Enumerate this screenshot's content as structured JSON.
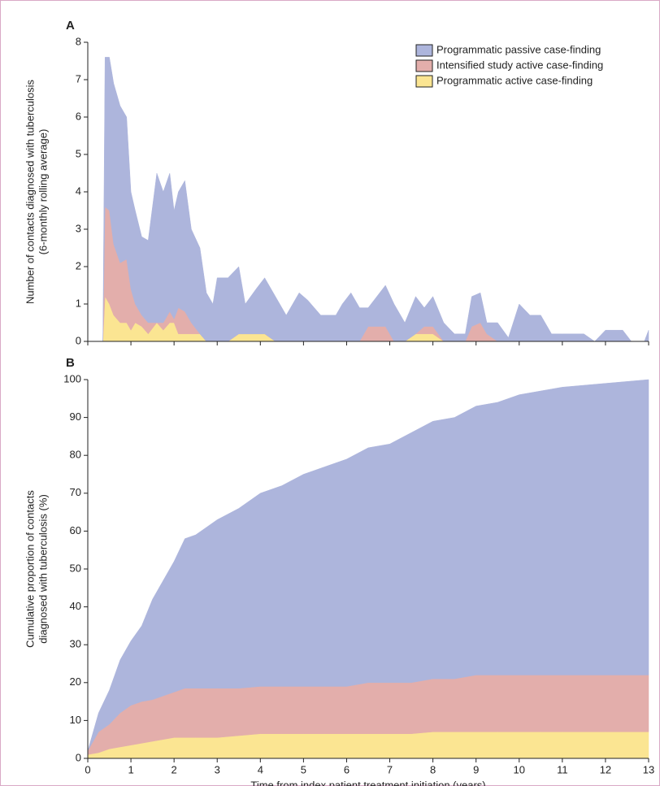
{
  "chart_data": [
    {
      "type": "area",
      "stacked": true,
      "panel_label": "A",
      "ylabel": [
        "Number of contacts diagnosed with tuberculosis",
        "(6-monthly rolling average)"
      ],
      "xlim": [
        0,
        13
      ],
      "ylim": [
        0,
        8
      ],
      "xticks": [
        0,
        1,
        2,
        3,
        4,
        5,
        6,
        7,
        8,
        9,
        10,
        11,
        12,
        13
      ],
      "yticks": [
        0,
        1,
        2,
        3,
        4,
        5,
        6,
        7,
        8
      ],
      "show_xtick_labels": false,
      "legend": "upper right",
      "x": [
        0,
        0.35,
        0.4,
        0.5,
        0.6,
        0.75,
        0.9,
        1,
        1.1,
        1.25,
        1.4,
        1.6,
        1.75,
        1.9,
        2,
        2.1,
        2.25,
        2.4,
        2.6,
        2.75,
        2.9,
        3,
        3.25,
        3.5,
        3.65,
        3.9,
        4.1,
        4.35,
        4.6,
        4.9,
        5.1,
        5.4,
        5.75,
        5.9,
        6.1,
        6.3,
        6.5,
        6.9,
        7.1,
        7.35,
        7.6,
        7.8,
        8,
        8.25,
        8.5,
        8.75,
        8.9,
        9.1,
        9.25,
        9.5,
        9.75,
        10,
        10.25,
        10.5,
        10.75,
        11,
        11.5,
        11.75,
        12,
        12.4,
        12.6,
        12.9,
        13
      ],
      "series": [
        {
          "name": "Programmatic active case-finding",
          "color": "#fbe592",
          "values": [
            0,
            0,
            1.2,
            1.0,
            0.7,
            0.5,
            0.5,
            0.3,
            0.5,
            0.4,
            0.2,
            0.5,
            0.3,
            0.5,
            0.5,
            0.2,
            0.2,
            0.2,
            0.2,
            0,
            0,
            0,
            0,
            0.2,
            0.2,
            0.2,
            0.2,
            0,
            0,
            0,
            0,
            0,
            0,
            0,
            0,
            0,
            0,
            0,
            0,
            0,
            0.2,
            0.2,
            0.2,
            0,
            0,
            0,
            0,
            0,
            0,
            0,
            0,
            0,
            0,
            0,
            0,
            0,
            0,
            0,
            0,
            0,
            0,
            0,
            0
          ]
        },
        {
          "name": "Intensified study active case-finding",
          "color": "#e3aeab",
          "values": [
            0,
            0,
            2.4,
            2.5,
            1.9,
            1.6,
            1.7,
            1.1,
            0.5,
            0.3,
            0.3,
            0,
            0.2,
            0.3,
            0.1,
            0.7,
            0.6,
            0.3,
            0,
            0,
            0,
            0,
            0,
            0,
            0,
            0,
            0,
            0,
            0,
            0,
            0,
            0,
            0,
            0,
            0,
            0,
            0.4,
            0.4,
            0,
            0,
            0,
            0.2,
            0.2,
            0,
            0,
            0,
            0.4,
            0.5,
            0.2,
            0,
            0,
            0,
            0,
            0,
            0,
            0,
            0,
            0,
            0,
            0,
            0,
            0,
            0
          ]
        },
        {
          "name": "Programmatic passive case-finding",
          "color": "#adb5dc",
          "values": [
            0,
            0,
            4.0,
            4.1,
            4.3,
            4.2,
            3.8,
            2.6,
            2.5,
            2.1,
            2.2,
            4.0,
            3.5,
            3.7,
            2.9,
            3.1,
            3.5,
            2.5,
            2.3,
            1.3,
            1.0,
            1.7,
            1.7,
            1.8,
            0.8,
            1.2,
            1.5,
            1.2,
            0.7,
            1.3,
            1.1,
            0.7,
            0.7,
            1.0,
            1.3,
            0.9,
            0.5,
            1.1,
            1.0,
            0.5,
            1.0,
            0.5,
            0.8,
            0.5,
            0.2,
            0.2,
            0.8,
            0.8,
            0.3,
            0.5,
            0.1,
            1.0,
            0.7,
            0.7,
            0.2,
            0.2,
            0.2,
            0,
            0.3,
            0.3,
            0,
            0,
            0.3
          ]
        }
      ]
    },
    {
      "type": "area",
      "stacked": true,
      "panel_label": "B",
      "ylabel": [
        "Cumulative proportion of contacts",
        "diagnosed with tuberculosis (%)"
      ],
      "xlabel": "Time from index patient treatment initiation (years)",
      "xlim": [
        0,
        13
      ],
      "ylim": [
        0,
        100
      ],
      "xticks": [
        0,
        1,
        2,
        3,
        4,
        5,
        6,
        7,
        8,
        9,
        10,
        11,
        12,
        13
      ],
      "yticks": [
        0,
        10,
        20,
        30,
        40,
        50,
        60,
        70,
        80,
        90,
        100
      ],
      "show_xtick_labels": true,
      "x": [
        0,
        0.25,
        0.5,
        0.75,
        1,
        1.25,
        1.5,
        1.75,
        2,
        2.25,
        2.5,
        2.75,
        3,
        3.5,
        4,
        4.5,
        5,
        5.5,
        6,
        6.5,
        7,
        7.5,
        8,
        8.5,
        9,
        9.5,
        10,
        10.5,
        11,
        12,
        13
      ],
      "series": [
        {
          "name": "Programmatic active case-finding",
          "color": "#fbe592",
          "values": [
            1,
            1.5,
            2.5,
            3,
            3.5,
            4,
            4.5,
            5,
            5.5,
            5.5,
            5.5,
            5.5,
            5.5,
            6,
            6.5,
            6.5,
            6.5,
            6.5,
            6.5,
            6.5,
            6.5,
            6.5,
            7,
            7,
            7,
            7,
            7,
            7,
            7,
            7,
            7
          ]
        },
        {
          "name": "Intensified study active case-finding",
          "color": "#e3aeab",
          "values": [
            1,
            5.5,
            6.5,
            9,
            10.5,
            11,
            11,
            11.5,
            12,
            13,
            13,
            13,
            13,
            12.5,
            12.5,
            12.5,
            12.5,
            12.5,
            12.5,
            13.5,
            13.5,
            13.5,
            14,
            14,
            15,
            15,
            15,
            15,
            15,
            15,
            15
          ]
        },
        {
          "name": "Programmatic passive case-finding",
          "color": "#adb5dc",
          "values": [
            0,
            5,
            9,
            14,
            17,
            20,
            26.5,
            30.5,
            34.5,
            39.5,
            40.5,
            42.5,
            44.5,
            47.5,
            51,
            53,
            56,
            58,
            60,
            62,
            63,
            66,
            68,
            69,
            71,
            72,
            74,
            75,
            76,
            77,
            78
          ]
        }
      ]
    }
  ]
}
